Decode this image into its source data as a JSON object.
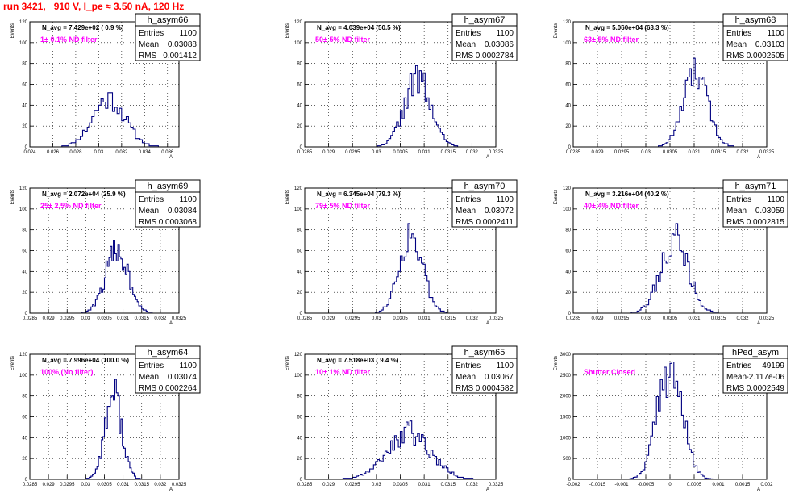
{
  "header": {
    "title": "run 3421,   910 V, I_pe ≈ 3.50 nA, 120 Hz"
  },
  "colors": {
    "title": "#ff0000",
    "annotation": "#ff00ff",
    "histogram": "#000080",
    "frame": "#000000",
    "grid": "#000000"
  },
  "chart_data": [
    {
      "type": "bar",
      "name": "h_asym66",
      "navg": "N_avg = 7.429e+02 ( 0.9 %)",
      "filter": "1± 0.1% ND filter",
      "stats": {
        "entries": "1100",
        "mean": "0.03088",
        "rms": "0.001412"
      },
      "ylabel": "Events",
      "xlabel": "A",
      "xlim": [
        0.024,
        0.037
      ],
      "ylim": [
        0,
        120
      ],
      "xticks": [
        "0.024",
        "0.026",
        "0.028",
        "0.03",
        "0.032",
        "0.034",
        "0.036"
      ],
      "xtickvals": [
        0.024,
        0.026,
        0.028,
        0.03,
        0.032,
        0.034,
        0.036
      ],
      "yticks": [
        "0",
        "20",
        "40",
        "60",
        "80",
        "100",
        "120"
      ],
      "ytickvals": [
        0,
        20,
        40,
        60,
        80,
        100,
        120
      ],
      "gen": {
        "mean": 0.03088,
        "sd": 0.00141,
        "peak": 48,
        "bin": 0.0002,
        "seed": 11
      }
    },
    {
      "type": "bar",
      "name": "h_asym67",
      "navg": "N_avg = 4.039e+04 (50.5 %)",
      "filter": "50± 5% ND filter",
      "stats": {
        "entries": "1100",
        "mean": "0.03086",
        "rms": "0.0002784"
      },
      "ylabel": "Events",
      "xlabel": "A",
      "xlim": [
        0.0285,
        0.0325
      ],
      "ylim": [
        0,
        120
      ],
      "xticks": [
        "0.0285",
        "0.029",
        "0.0295",
        "0.03",
        "0.0305",
        "0.031",
        "0.0315",
        "0.032",
        "0.0325"
      ],
      "xtickvals": [
        0.0285,
        0.029,
        0.0295,
        0.03,
        0.0305,
        0.031,
        0.0315,
        0.032,
        0.0325
      ],
      "yticks": [
        "0",
        "20",
        "40",
        "60",
        "80",
        "100",
        "120"
      ],
      "ytickvals": [
        0,
        20,
        40,
        60,
        80,
        100,
        120
      ],
      "gen": {
        "mean": 0.03086,
        "sd": 0.000278,
        "peak": 66,
        "bin": 4e-05,
        "seed": 22
      }
    },
    {
      "type": "bar",
      "name": "h_asym68",
      "navg": "N_avg = 5.060e+04 (63.3 %)",
      "filter": "63± 5% ND filter",
      "stats": {
        "entries": "1100",
        "mean": "0.03103",
        "rms": "0.0002505"
      },
      "ylabel": "Events",
      "xlabel": "A",
      "xlim": [
        0.0285,
        0.0325
      ],
      "ylim": [
        0,
        120
      ],
      "xticks": [
        "0.0285",
        "0.029",
        "0.0295",
        "0.03",
        "0.0305",
        "0.031",
        "0.0315",
        "0.032",
        "0.0325"
      ],
      "xtickvals": [
        0.0285,
        0.029,
        0.0295,
        0.03,
        0.0305,
        0.031,
        0.0315,
        0.032,
        0.0325
      ],
      "yticks": [
        "0",
        "20",
        "40",
        "60",
        "80",
        "100",
        "120"
      ],
      "ytickvals": [
        0,
        20,
        40,
        60,
        80,
        100,
        120
      ],
      "gen": {
        "mean": 0.03103,
        "sd": 0.00025,
        "peak": 73,
        "bin": 4e-05,
        "seed": 33
      }
    },
    {
      "type": "bar",
      "name": "h_asym69",
      "navg": "N_avg = 2.072e+04 (25.9 %)",
      "filter": "25± 2.5% ND filter",
      "stats": {
        "entries": "1100",
        "mean": "0.03084",
        "rms": "0.0003068"
      },
      "ylabel": "Events",
      "xlabel": "A",
      "xlim": [
        0.0285,
        0.0325
      ],
      "ylim": [
        0,
        120
      ],
      "xticks": [
        "0.0285",
        "0.029",
        "0.0295",
        "0.03",
        "0.0305",
        "0.031",
        "0.0315",
        "0.032",
        "0.0325"
      ],
      "xtickvals": [
        0.0285,
        0.029,
        0.0295,
        0.03,
        0.0305,
        0.031,
        0.0315,
        0.032,
        0.0325
      ],
      "yticks": [
        "0",
        "20",
        "40",
        "60",
        "80",
        "100",
        "120"
      ],
      "ytickvals": [
        0,
        20,
        40,
        60,
        80,
        100,
        120
      ],
      "gen": {
        "mean": 0.03084,
        "sd": 0.000307,
        "peak": 62,
        "bin": 4e-05,
        "seed": 44
      }
    },
    {
      "type": "bar",
      "name": "h_asym70",
      "navg": "N_avg = 6.345e+04 (79.3 %)",
      "filter": "79± 5% ND filter",
      "stats": {
        "entries": "1100",
        "mean": "0.03072",
        "rms": "0.0002411"
      },
      "ylabel": "Events",
      "xlabel": "A",
      "xlim": [
        0.0285,
        0.0325
      ],
      "ylim": [
        0,
        120
      ],
      "xticks": [
        "0.0285",
        "0.029",
        "0.0295",
        "0.03",
        "0.0305",
        "0.031",
        "0.0315",
        "0.032",
        "0.0325"
      ],
      "xtickvals": [
        0.0285,
        0.029,
        0.0295,
        0.03,
        0.0305,
        0.031,
        0.0315,
        0.032,
        0.0325
      ],
      "yticks": [
        "0",
        "20",
        "40",
        "60",
        "80",
        "100",
        "120"
      ],
      "ytickvals": [
        0,
        20,
        40,
        60,
        80,
        100,
        120
      ],
      "gen": {
        "mean": 0.03072,
        "sd": 0.000241,
        "peak": 78,
        "bin": 4e-05,
        "seed": 55
      }
    },
    {
      "type": "bar",
      "name": "h_asym71",
      "navg": "N_avg = 3.216e+04 (40.2 %)",
      "filter": "40± 4% ND filter",
      "stats": {
        "entries": "1100",
        "mean": "0.03059",
        "rms": "0.0002815"
      },
      "ylabel": "Events",
      "xlabel": "A",
      "xlim": [
        0.0285,
        0.0325
      ],
      "ylim": [
        0,
        120
      ],
      "xticks": [
        "0.0285",
        "0.029",
        "0.0295",
        "0.03",
        "0.0305",
        "0.031",
        "0.0315",
        "0.032",
        "0.0325"
      ],
      "xtickvals": [
        0.0285,
        0.029,
        0.0295,
        0.03,
        0.0305,
        0.031,
        0.0315,
        0.032,
        0.0325
      ],
      "yticks": [
        "0",
        "20",
        "40",
        "60",
        "80",
        "100",
        "120"
      ],
      "ytickvals": [
        0,
        20,
        40,
        60,
        80,
        100,
        120
      ],
      "gen": {
        "mean": 0.03059,
        "sd": 0.000282,
        "peak": 72,
        "bin": 4e-05,
        "seed": 66
      }
    },
    {
      "type": "bar",
      "name": "h_asym64",
      "navg": "N_avg = 7.996e+04 (100.0 %)",
      "filter": "100% (No filter)",
      "stats": {
        "entries": "1100",
        "mean": "0.03074",
        "rms": "0.0002264"
      },
      "ylabel": "Events",
      "xlabel": "A",
      "xlim": [
        0.0285,
        0.0325
      ],
      "ylim": [
        0,
        120
      ],
      "xticks": [
        "0.0285",
        "0.029",
        "0.0295",
        "0.03",
        "0.0305",
        "0.031",
        "0.0315",
        "0.032",
        "0.0325"
      ],
      "xtickvals": [
        0.0285,
        0.029,
        0.0295,
        0.03,
        0.0305,
        0.031,
        0.0315,
        0.032,
        0.0325
      ],
      "yticks": [
        "0",
        "20",
        "40",
        "60",
        "80",
        "100",
        "120"
      ],
      "ytickvals": [
        0,
        20,
        40,
        60,
        80,
        100,
        120
      ],
      "gen": {
        "mean": 0.03074,
        "sd": 0.000226,
        "peak": 84,
        "bin": 4e-05,
        "seed": 77
      }
    },
    {
      "type": "bar",
      "name": "h_asym65",
      "navg": "N_avg = 7.518e+03 ( 9.4 %)",
      "filter": "10± 1% ND filter",
      "stats": {
        "entries": "1100",
        "mean": "0.03067",
        "rms": "0.0004582"
      },
      "ylabel": "Events",
      "xlabel": "A",
      "xlim": [
        0.0285,
        0.0325
      ],
      "ylim": [
        0,
        120
      ],
      "xticks": [
        "0.0285",
        "0.029",
        "0.0295",
        "0.03",
        "0.0305",
        "0.031",
        "0.0315",
        "0.032",
        "0.0325"
      ],
      "xtickvals": [
        0.0285,
        0.029,
        0.0295,
        0.03,
        0.0305,
        0.031,
        0.0315,
        0.032,
        0.0325
      ],
      "yticks": [
        "0",
        "20",
        "40",
        "60",
        "80",
        "100",
        "120"
      ],
      "ytickvals": [
        0,
        20,
        40,
        60,
        80,
        100,
        120
      ],
      "gen": {
        "mean": 0.03067,
        "sd": 0.000458,
        "peak": 46,
        "bin": 4e-05,
        "seed": 88
      }
    },
    {
      "type": "bar",
      "name": "hPed_asym",
      "navg": "",
      "filter": "Shutter Closed",
      "stats": {
        "entries": "49199",
        "mean": "-2.117e-06",
        "rms": "0.0002549"
      },
      "ylabel": "Events",
      "xlabel": "A",
      "xlim": [
        -0.002,
        0.002
      ],
      "ylim": [
        0,
        3000
      ],
      "xticks": [
        "-0.002",
        "-0.0015",
        "-0.001",
        "-0.0005",
        "0",
        "0.0005",
        "0.001",
        "0.0015",
        "0.002"
      ],
      "xtickvals": [
        -0.002,
        -0.0015,
        -0.001,
        -0.0005,
        0,
        0.0005,
        0.001,
        0.0015,
        0.002
      ],
      "yticks": [
        "0",
        "500",
        "1000",
        "1500",
        "2000",
        "2500",
        "3000"
      ],
      "ytickvals": [
        0,
        500,
        1000,
        1500,
        2000,
        2500,
        3000
      ],
      "gen": {
        "mean": 0.0,
        "sd": 0.000255,
        "peak": 2800,
        "bin": 4e-05,
        "seed": 99
      }
    }
  ]
}
